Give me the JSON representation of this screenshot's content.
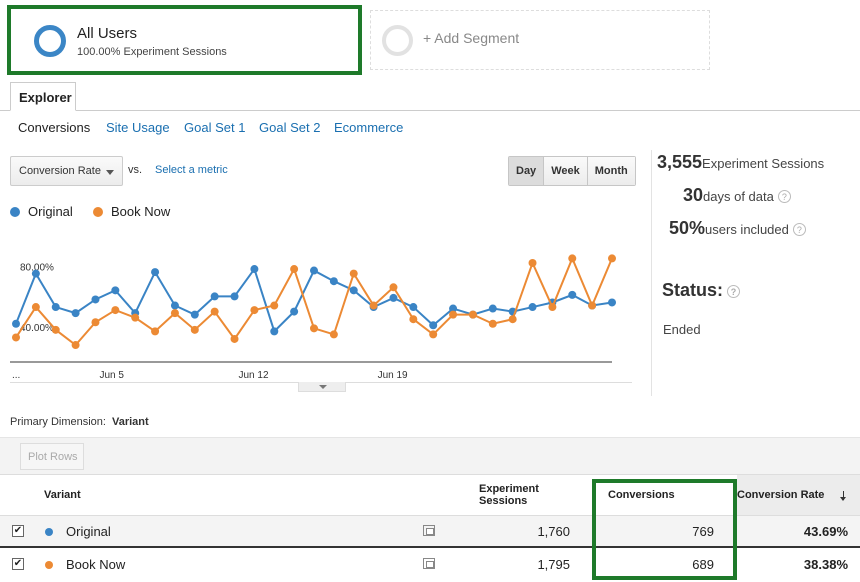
{
  "segments": {
    "active": {
      "name": "All Users",
      "subtitle": "100.00% Experiment Sessions"
    },
    "add_label": "+ Add Segment"
  },
  "tabs": {
    "explorer": "Explorer"
  },
  "subtabs": [
    "Conversions",
    "Site Usage",
    "Goal Set 1",
    "Goal Set 2",
    "Ecommerce"
  ],
  "controls": {
    "metric": "Conversion Rate",
    "vs": "vs.",
    "select_metric": "Select a metric",
    "range": [
      "Day",
      "Week",
      "Month"
    ],
    "selected_range": "Day"
  },
  "legend": [
    {
      "name": "Original",
      "color": "#3a84c5"
    },
    {
      "name": "Book Now",
      "color": "#ec8a34"
    }
  ],
  "chart_data": {
    "type": "line",
    "y_tick_labels": [
      "80.00%",
      "40.00%"
    ],
    "x_tick_labels": [
      "...",
      "Jun 5",
      "Jun 12",
      "Jun 19"
    ],
    "series": [
      {
        "name": "Original",
        "color": "#3a84c5",
        "values": [
          37,
          70,
          48,
          44,
          53,
          59,
          44,
          71,
          49,
          43,
          55,
          55,
          73,
          32,
          45,
          72,
          65,
          59,
          48,
          54,
          48,
          36,
          47,
          43,
          47,
          45,
          48,
          51,
          56,
          49,
          51
        ]
      },
      {
        "name": "Book Now",
        "color": "#ec8a34",
        "values": [
          28,
          48,
          33,
          23,
          38,
          46,
          41,
          32,
          44,
          33,
          45,
          27,
          46,
          49,
          73,
          34,
          30,
          70,
          49,
          61,
          40,
          30,
          43,
          43,
          37,
          40,
          77,
          48,
          80,
          49,
          80
        ]
      }
    ],
    "ylim": [
      0,
      100
    ],
    "grid": false
  },
  "stats": {
    "sessions_value": "3,555",
    "sessions_label": "Experiment Sessions",
    "days_value": "30",
    "days_label": "days of data",
    "users_value": "50%",
    "users_label": "users included",
    "status_title": "Status:",
    "status_value": "Ended"
  },
  "table": {
    "primary_dimension_label": "Primary Dimension:",
    "primary_dimension_value": "Variant",
    "plot_rows": "Plot Rows",
    "headers": {
      "variant": "Variant",
      "sessions_line1": "Experiment",
      "sessions_line2": "Sessions",
      "conversions": "Conversions",
      "rate": "Conversion Rate"
    },
    "rows": [
      {
        "name": "Original",
        "color": "#3a84c5",
        "sessions": "1,760",
        "conversions": "769",
        "rate": "43.69%"
      },
      {
        "name": "Book Now",
        "color": "#ec8a34",
        "sessions": "1,795",
        "conversions": "689",
        "rate": "38.38%"
      }
    ]
  }
}
